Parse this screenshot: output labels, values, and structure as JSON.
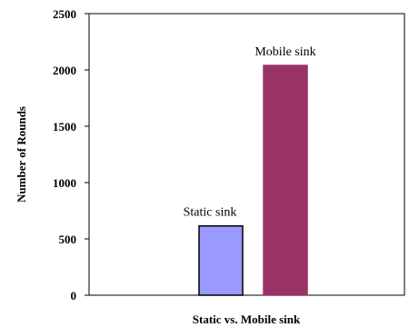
{
  "chart_data": {
    "type": "bar",
    "title": "",
    "xlabel": "Static vs. Mobile sink",
    "ylabel": "Number of Rounds",
    "ylim": [
      0,
      2500
    ],
    "yticks": [
      0,
      500,
      1000,
      1500,
      2000,
      2500
    ],
    "grid": false,
    "legend": "none",
    "series": [
      {
        "name": "Static sink",
        "values": [
          615
        ],
        "color": "#9999ff",
        "border": "#000000"
      },
      {
        "name": "Mobile sink",
        "values": [
          2040
        ],
        "color": "#993366",
        "border": "#993366"
      }
    ]
  }
}
